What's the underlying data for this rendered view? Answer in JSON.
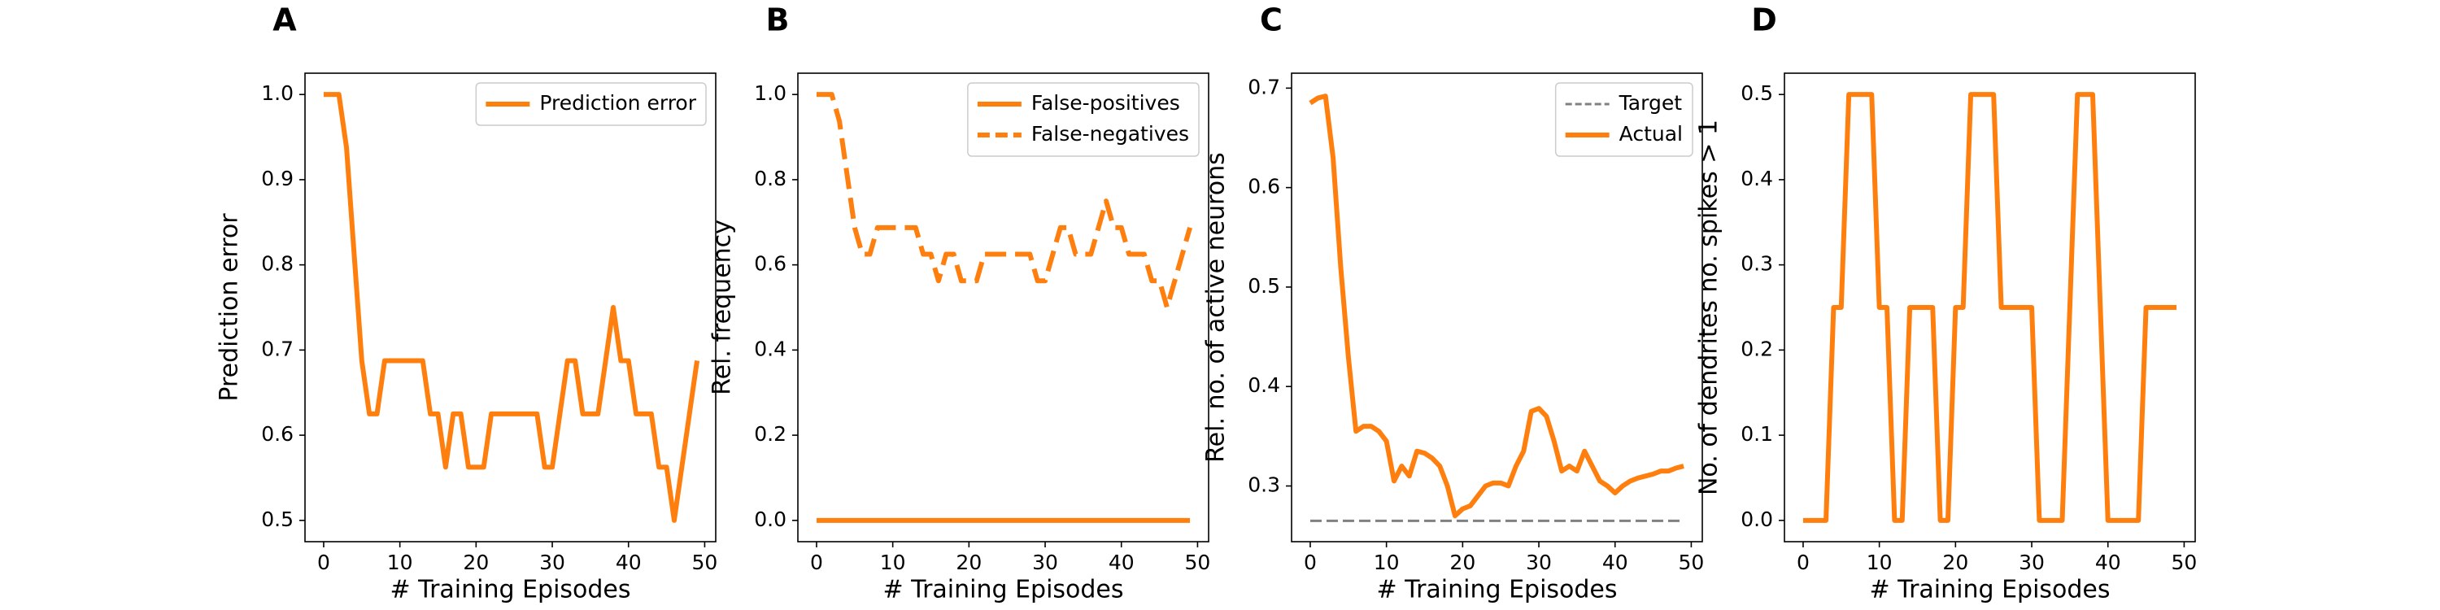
{
  "chart_data": [
    {
      "type": "line",
      "panel": "A",
      "xlabel": "# Training Episodes",
      "ylabel": "Prediction error",
      "x": [
        0,
        1,
        2,
        3,
        4,
        5,
        6,
        7,
        8,
        9,
        10,
        11,
        12,
        13,
        14,
        15,
        16,
        17,
        18,
        19,
        20,
        21,
        22,
        23,
        24,
        25,
        26,
        27,
        28,
        29,
        30,
        31,
        32,
        33,
        34,
        35,
        36,
        37,
        38,
        39,
        40,
        41,
        42,
        43,
        44,
        45,
        46,
        47,
        48,
        49
      ],
      "xlim": [
        -2.45,
        51.45
      ],
      "xticks": [
        0,
        10,
        20,
        30,
        40,
        50
      ],
      "ylim": [
        0.475,
        1.025
      ],
      "yticks": [
        0.5,
        0.6,
        0.7,
        0.8,
        0.9,
        {
          "value": 1,
          "label": "1.0"
        }
      ],
      "legend": "upper right",
      "series": [
        {
          "name": "Prediction error",
          "color": "#ff7f0e",
          "linestyle": "solid",
          "values": [
            1,
            1,
            1,
            0.9375,
            0.8125,
            0.6875,
            0.625,
            0.625,
            0.6875,
            0.6875,
            0.6875,
            0.6875,
            0.6875,
            0.6875,
            0.625,
            0.625,
            0.5625,
            0.625,
            0.625,
            0.5625,
            0.5625,
            0.5625,
            0.625,
            0.625,
            0.625,
            0.625,
            0.625,
            0.625,
            0.625,
            0.5625,
            0.5625,
            0.625,
            0.6875,
            0.6875,
            0.625,
            0.625,
            0.625,
            0.6875,
            0.75,
            0.6875,
            0.6875,
            0.625,
            0.625,
            0.625,
            0.5625,
            0.5625,
            0.5,
            0.5625,
            0.625,
            0.6875
          ]
        }
      ]
    },
    {
      "type": "line",
      "panel": "B",
      "xlabel": "# Training Episodes",
      "ylabel": "Rel. frequency",
      "x": [
        0,
        1,
        2,
        3,
        4,
        5,
        6,
        7,
        8,
        9,
        10,
        11,
        12,
        13,
        14,
        15,
        16,
        17,
        18,
        19,
        20,
        21,
        22,
        23,
        24,
        25,
        26,
        27,
        28,
        29,
        30,
        31,
        32,
        33,
        34,
        35,
        36,
        37,
        38,
        39,
        40,
        41,
        42,
        43,
        44,
        45,
        46,
        47,
        48,
        49
      ],
      "xlim": [
        -2.45,
        51.45
      ],
      "xticks": [
        0,
        10,
        20,
        30,
        40,
        50
      ],
      "ylim": [
        -0.05,
        1.05
      ],
      "yticks": [
        {
          "value": 0,
          "label": "0.0"
        },
        0.2,
        0.4,
        0.6,
        0.8,
        {
          "value": 1,
          "label": "1.0"
        }
      ],
      "legend": "upper right",
      "series": [
        {
          "name": "False-positives",
          "color": "#ff7f0e",
          "linestyle": "solid",
          "values": [
            0,
            0,
            0,
            0,
            0,
            0,
            0,
            0,
            0,
            0,
            0,
            0,
            0,
            0,
            0,
            0,
            0,
            0,
            0,
            0,
            0,
            0,
            0,
            0,
            0,
            0,
            0,
            0,
            0,
            0,
            0,
            0,
            0,
            0,
            0,
            0,
            0,
            0,
            0,
            0,
            0,
            0,
            0,
            0,
            0,
            0,
            0,
            0,
            0,
            0
          ]
        },
        {
          "name": "False-negatives",
          "color": "#ff7f0e",
          "linestyle": "dashed",
          "values": [
            1,
            1,
            1,
            0.9375,
            0.8125,
            0.6875,
            0.625,
            0.625,
            0.6875,
            0.6875,
            0.6875,
            0.6875,
            0.6875,
            0.6875,
            0.625,
            0.625,
            0.5625,
            0.625,
            0.625,
            0.5625,
            0.5625,
            0.5625,
            0.625,
            0.625,
            0.625,
            0.625,
            0.625,
            0.625,
            0.625,
            0.5625,
            0.5625,
            0.625,
            0.6875,
            0.6875,
            0.625,
            0.625,
            0.625,
            0.6875,
            0.75,
            0.6875,
            0.6875,
            0.625,
            0.625,
            0.625,
            0.5625,
            0.5625,
            0.5,
            0.5625,
            0.625,
            0.6875
          ]
        }
      ]
    },
    {
      "type": "line",
      "panel": "C",
      "xlabel": "# Training Episodes",
      "ylabel": "Rel. no. of active neurons",
      "x": [
        0,
        1,
        2,
        3,
        4,
        5,
        6,
        7,
        8,
        9,
        10,
        11,
        12,
        13,
        14,
        15,
        16,
        17,
        18,
        19,
        20,
        21,
        22,
        23,
        24,
        25,
        26,
        27,
        28,
        29,
        30,
        31,
        32,
        33,
        34,
        35,
        36,
        37,
        38,
        39,
        40,
        41,
        42,
        43,
        44,
        45,
        46,
        47,
        48,
        49
      ],
      "xlim": [
        -2.45,
        51.45
      ],
      "xticks": [
        0,
        10,
        20,
        30,
        40,
        50
      ],
      "ylim": [
        0.244,
        0.715
      ],
      "yticks": [
        0.3,
        0.4,
        0.5,
        0.6,
        0.7
      ],
      "legend": "upper right",
      "series": [
        {
          "name": "Target",
          "color": "#808080",
          "linestyle": "dashed-thin",
          "values": [
            0.265,
            0.265,
            0.265,
            0.265,
            0.265,
            0.265,
            0.265,
            0.265,
            0.265,
            0.265,
            0.265,
            0.265,
            0.265,
            0.265,
            0.265,
            0.265,
            0.265,
            0.265,
            0.265,
            0.265,
            0.265,
            0.265,
            0.265,
            0.265,
            0.265,
            0.265,
            0.265,
            0.265,
            0.265,
            0.265,
            0.265,
            0.265,
            0.265,
            0.265,
            0.265,
            0.265,
            0.265,
            0.265,
            0.265,
            0.265,
            0.265,
            0.265,
            0.265,
            0.265,
            0.265,
            0.265,
            0.265,
            0.265,
            0.265,
            0.265
          ]
        },
        {
          "name": "Actual",
          "color": "#ff7f0e",
          "linestyle": "solid",
          "values": [
            0.685,
            0.69,
            0.692,
            0.63,
            0.52,
            0.43,
            0.355,
            0.36,
            0.36,
            0.355,
            0.345,
            0.305,
            0.32,
            0.31,
            0.335,
            0.333,
            0.328,
            0.32,
            0.3,
            0.27,
            0.277,
            0.28,
            0.29,
            0.3,
            0.303,
            0.303,
            0.3,
            0.32,
            0.335,
            0.375,
            0.378,
            0.37,
            0.345,
            0.315,
            0.32,
            0.315,
            0.335,
            0.32,
            0.305,
            0.3,
            0.293,
            0.3,
            0.305,
            0.308,
            0.31,
            0.312,
            0.315,
            0.315,
            0.318,
            0.32
          ]
        }
      ]
    },
    {
      "type": "line",
      "panel": "D",
      "xlabel": "# Training Episodes",
      "ylabel": "No. of dendrites no. spikes > 1",
      "x": [
        0,
        1,
        2,
        3,
        4,
        5,
        6,
        7,
        8,
        9,
        10,
        11,
        12,
        13,
        14,
        15,
        16,
        17,
        18,
        19,
        20,
        21,
        22,
        23,
        24,
        25,
        26,
        27,
        28,
        29,
        30,
        31,
        32,
        33,
        34,
        35,
        36,
        37,
        38,
        39,
        40,
        41,
        42,
        43,
        44,
        45,
        46,
        47,
        48,
        49
      ],
      "xlim": [
        -2.45,
        51.45
      ],
      "xticks": [
        0,
        10,
        20,
        30,
        40,
        50
      ],
      "ylim": [
        -0.025,
        0.525
      ],
      "yticks": [
        {
          "value": 0,
          "label": "0.0"
        },
        0.1,
        0.2,
        0.3,
        0.4,
        0.5
      ],
      "series": [
        {
          "color": "#ff7f0e",
          "linestyle": "solid",
          "values": [
            0,
            0,
            0,
            0,
            0.25,
            0.25,
            0.5,
            0.5,
            0.5,
            0.5,
            0.25,
            0.25,
            0,
            0,
            0.25,
            0.25,
            0.25,
            0.25,
            0,
            0,
            0.25,
            0.25,
            0.5,
            0.5,
            0.5,
            0.5,
            0.25,
            0.25,
            0.25,
            0.25,
            0.25,
            0,
            0,
            0,
            0,
            0.25,
            0.5,
            0.5,
            0.5,
            0.25,
            0,
            0,
            0,
            0,
            0,
            0.25,
            0.25,
            0.25,
            0.25,
            0.25
          ]
        }
      ]
    }
  ]
}
